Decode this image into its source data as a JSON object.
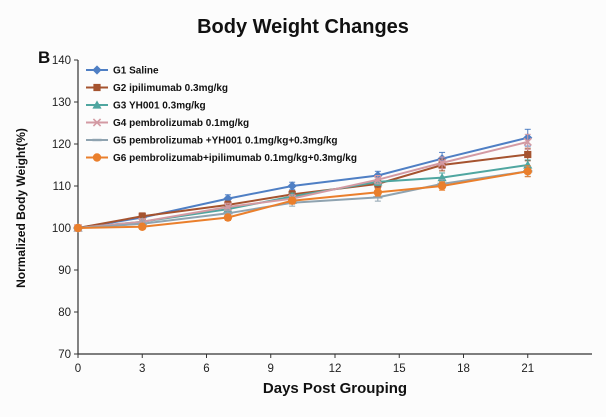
{
  "chart_data": {
    "type": "line",
    "panel_label": "B",
    "title": "Body Weight Changes",
    "xlabel": "Days Post Grouping",
    "ylabel": "Normalized Body Weight(%)",
    "xlim": [
      0,
      24
    ],
    "ylim": [
      70,
      140
    ],
    "xticks": [
      0,
      3,
      6,
      9,
      12,
      15,
      18,
      21
    ],
    "yticks": [
      70,
      80,
      90,
      100,
      110,
      120,
      130,
      140
    ],
    "grid": false,
    "legend_position": "top-left",
    "x": [
      0,
      3,
      7,
      10,
      14,
      17,
      21
    ],
    "series": [
      {
        "name": "G1 Saline",
        "color": "#4f7fc4",
        "marker": "diamond",
        "values": [
          100,
          102.5,
          107,
          110,
          112.5,
          116.5,
          121.5
        ],
        "errors": [
          0.4,
          0.8,
          0.9,
          0.9,
          1.0,
          1.5,
          2.0
        ]
      },
      {
        "name": "G2 ipilimumab 0.3mg/kg",
        "color": "#a5532f",
        "marker": "square",
        "values": [
          100,
          102.8,
          105.5,
          108,
          110.5,
          115,
          117.5
        ],
        "errors": [
          0.4,
          0.8,
          0.9,
          0.9,
          1.0,
          1.4,
          1.5
        ]
      },
      {
        "name": "G3 YH001 0.3mg/kg",
        "color": "#4fa6a0",
        "marker": "triangle",
        "values": [
          100,
          101.5,
          104.5,
          107.5,
          111,
          112,
          115
        ],
        "errors": [
          0.4,
          0.7,
          0.8,
          0.8,
          0.9,
          1.1,
          1.2
        ]
      },
      {
        "name": "G4 pembrolizumab 0.1mg/kg",
        "color": "#d39aa3",
        "marker": "x",
        "values": [
          100,
          101.5,
          105,
          107,
          111.5,
          115.5,
          120.5
        ],
        "errors": [
          0.4,
          0.7,
          0.9,
          0.9,
          1.0,
          1.4,
          1.8
        ]
      },
      {
        "name": "G5 pembrolizumab +YH001 0.1mg/kg+0.3mg/kg",
        "color": "#8fa3b0",
        "marker": "line",
        "values": [
          100,
          101,
          103.5,
          106,
          107.3,
          110.5,
          113.5
        ],
        "errors": [
          0.4,
          0.7,
          0.8,
          0.8,
          0.9,
          1.0,
          1.2
        ]
      },
      {
        "name": "G6 pembrolizumab+ipilimumab 0.1mg/kg+0.3mg/kg",
        "color": "#ea7f2c",
        "marker": "circle",
        "values": [
          100,
          100.3,
          102.5,
          106.5,
          108.5,
          110,
          113.5
        ],
        "errors": [
          0.4,
          0.6,
          0.7,
          0.8,
          0.9,
          1.0,
          1.3
        ]
      }
    ]
  }
}
